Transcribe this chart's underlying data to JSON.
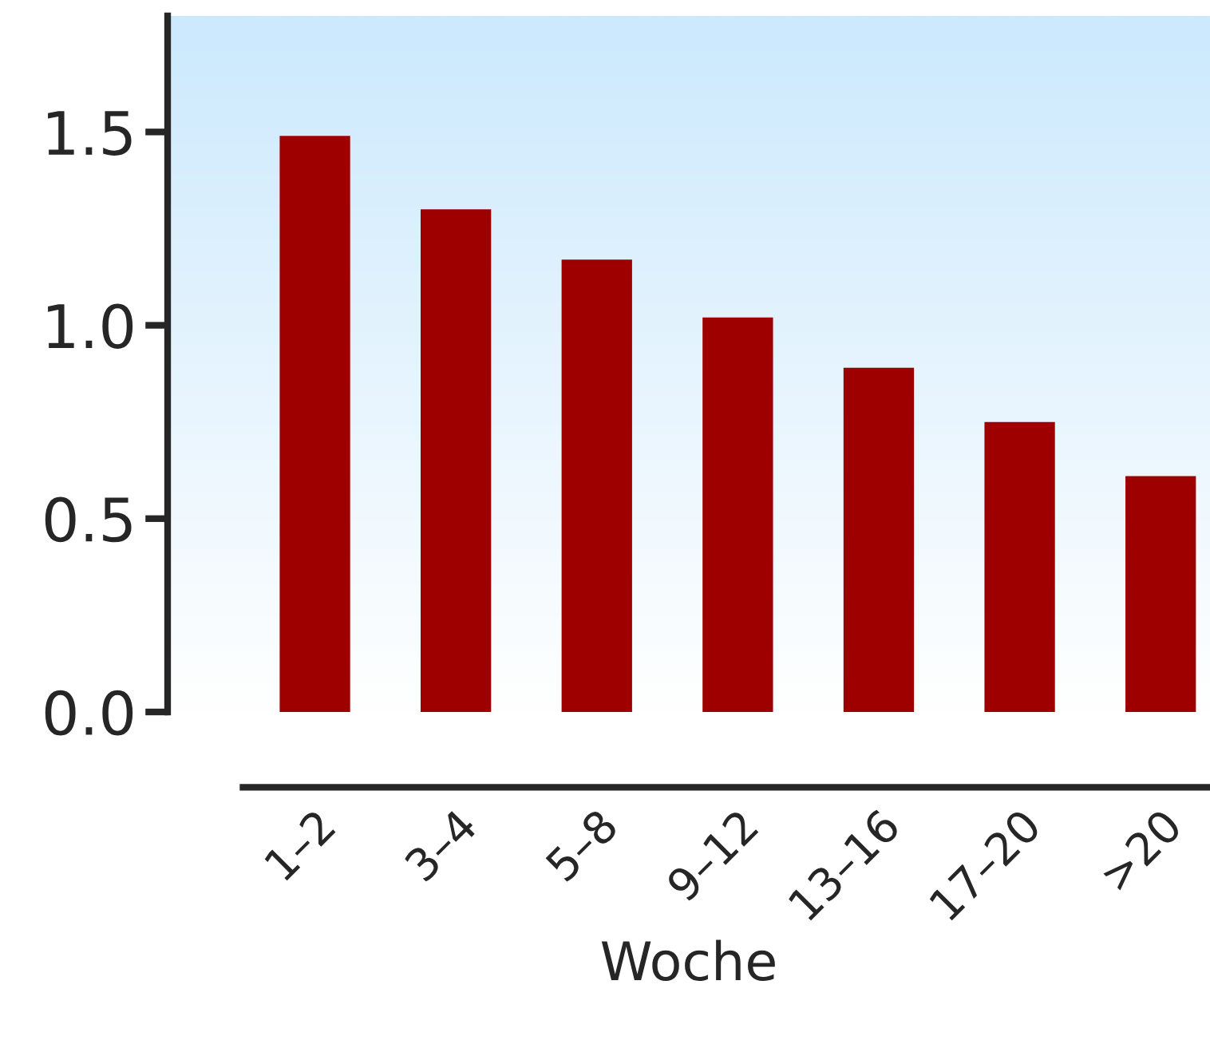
{
  "chart_data": {
    "type": "bar",
    "xlabel": "Woche",
    "categories": [
      "1–2",
      "3–4",
      "5–8",
      "9–12",
      "13–16",
      "17–20",
      ">20"
    ],
    "values": [
      1.49,
      1.3,
      1.17,
      1.02,
      0.89,
      0.75,
      0.61
    ],
    "color": "#9e0000",
    "ylim": [
      0,
      1.8
    ],
    "yticks": [
      {
        "value": 0,
        "label": "0.0"
      },
      {
        "value": 0.5,
        "label": "0.5"
      },
      {
        "value": 1.0,
        "label": "1.0"
      },
      {
        "value": 1.5,
        "label": "1.5"
      }
    ],
    "grid": false,
    "legend": false
  }
}
